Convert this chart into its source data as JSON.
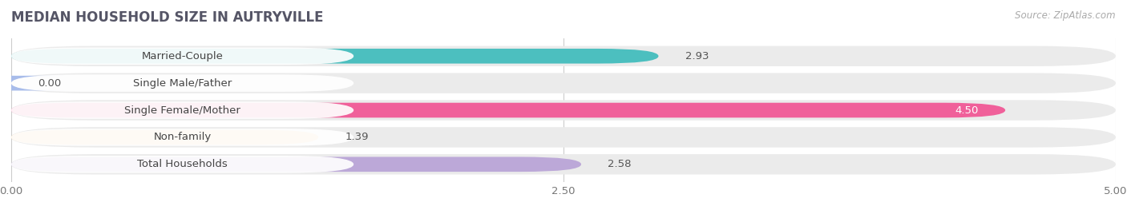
{
  "title": "MEDIAN HOUSEHOLD SIZE IN AUTRYVILLE",
  "source": "Source: ZipAtlas.com",
  "categories": [
    "Married-Couple",
    "Single Male/Father",
    "Single Female/Mother",
    "Non-family",
    "Total Households"
  ],
  "values": [
    2.93,
    0.0,
    4.5,
    1.39,
    2.58
  ],
  "bar_colors": [
    "#4CBFBF",
    "#A8BCEA",
    "#F0609A",
    "#F5C98A",
    "#BCA8D8"
  ],
  "xlim": [
    0,
    5.0
  ],
  "xtick_labels": [
    "0.00",
    "2.50",
    "5.00"
  ],
  "xtick_positions": [
    0.0,
    2.5,
    5.0
  ],
  "label_fontsize": 9.5,
  "value_fontsize": 9.5,
  "title_fontsize": 12,
  "source_fontsize": 8.5,
  "background_color": "#FFFFFF",
  "bar_height": 0.55,
  "bar_bg_color": "#EBEBEB",
  "bar_spacing": 1.0,
  "value_label_color_inside": "#FFFFFF",
  "value_label_color_outside": "#555555",
  "label_box_color": "#FFFFFF",
  "grid_color": "#CCCCCC",
  "title_color": "#555566",
  "source_color": "#AAAAAA"
}
